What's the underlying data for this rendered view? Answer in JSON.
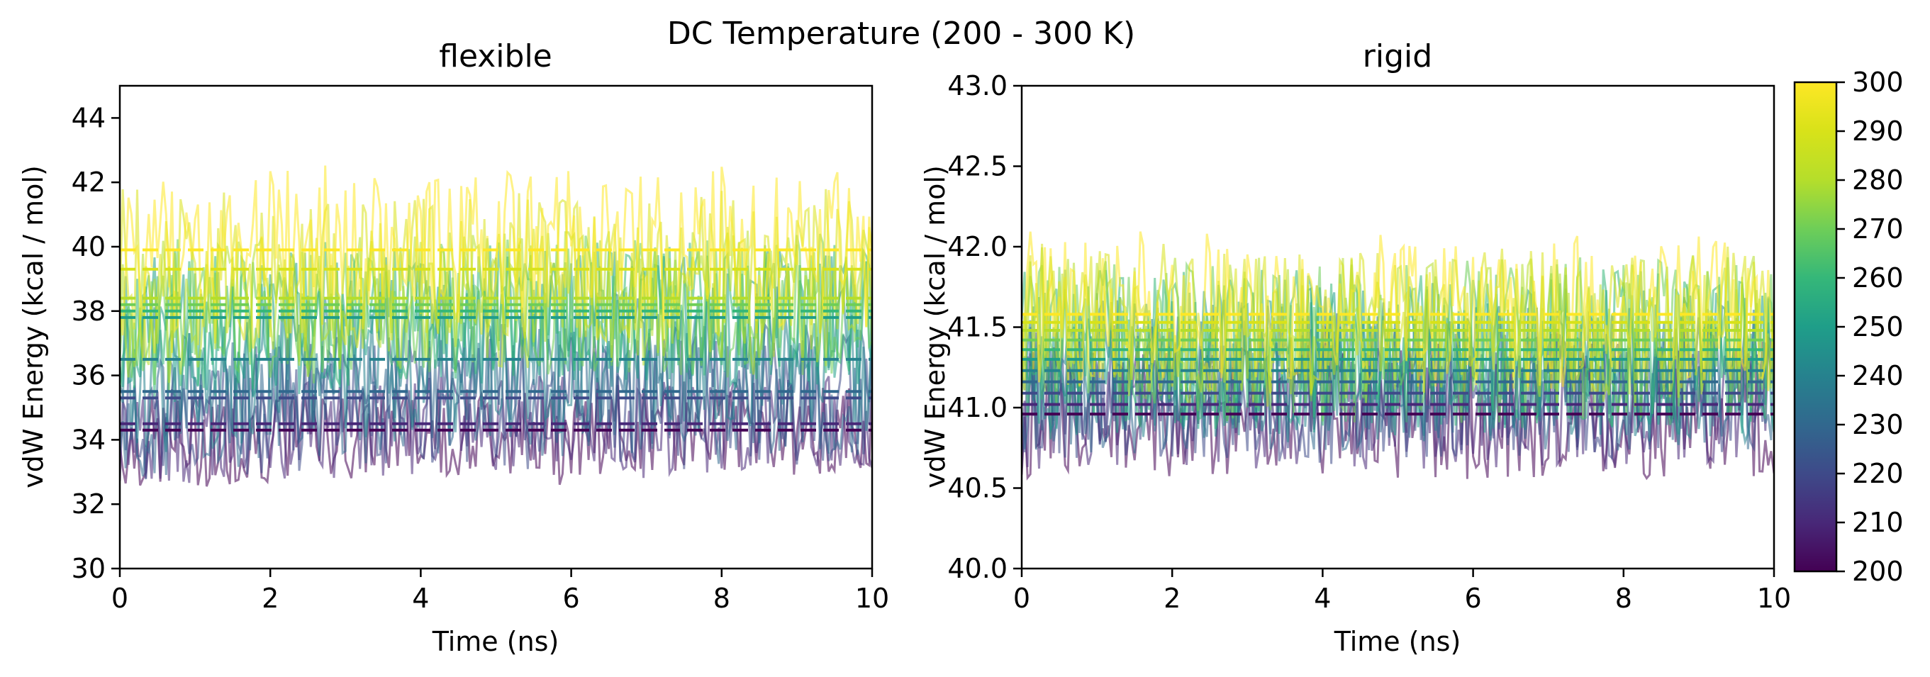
{
  "figure": {
    "suptitle": "DC Temperature (200 - 300 K)"
  },
  "colorbar": {
    "range": [
      200,
      300
    ],
    "ticks": [
      200,
      210,
      220,
      230,
      240,
      250,
      260,
      270,
      280,
      290,
      300
    ],
    "colormap": "viridis"
  },
  "chart_data": [
    {
      "type": "line",
      "title": "flexible",
      "xlabel": "Time (ns)",
      "ylabel": "vdW Energy (kcal / mol)",
      "xlim": [
        0,
        10
      ],
      "ylim": [
        30,
        45
      ],
      "xticks": [
        0,
        2,
        4,
        6,
        8,
        10
      ],
      "yticks": [
        30,
        32,
        34,
        36,
        38,
        40,
        42,
        44
      ],
      "grid": false,
      "series_description": "One noisy energy trace per replica, colored by DC temperature (viridis, 200-300 K). Dashed lines mark each replica's mean energy.",
      "series": [
        {
          "temperature": 200,
          "mean": 34.3,
          "spread": [
            32.6,
            35.6
          ]
        },
        {
          "temperature": 210,
          "mean": 34.5,
          "spread": [
            32.8,
            36.0
          ]
        },
        {
          "temperature": 220,
          "mean": 35.3,
          "spread": [
            33.0,
            37.2
          ]
        },
        {
          "temperature": 230,
          "mean": 35.5,
          "spread": [
            33.2,
            37.6
          ]
        },
        {
          "temperature": 240,
          "mean": 36.5,
          "spread": [
            33.8,
            38.6
          ]
        },
        {
          "temperature": 250,
          "mean": 37.8,
          "spread": [
            35.4,
            39.8
          ]
        },
        {
          "temperature": 260,
          "mean": 38.0,
          "spread": [
            35.6,
            40.2
          ]
        },
        {
          "temperature": 270,
          "mean": 38.2,
          "spread": [
            35.8,
            40.4
          ]
        },
        {
          "temperature": 280,
          "mean": 38.4,
          "spread": [
            36.0,
            40.6
          ]
        },
        {
          "temperature": 290,
          "mean": 39.3,
          "spread": [
            37.0,
            41.8
          ]
        },
        {
          "temperature": 300,
          "mean": 39.9,
          "spread": [
            37.5,
            42.6
          ]
        }
      ]
    },
    {
      "type": "line",
      "title": "rigid",
      "xlabel": "Time (ns)",
      "ylabel": "vdW Energy (kcal / mol)",
      "xlim": [
        0,
        10
      ],
      "ylim": [
        40,
        43
      ],
      "xticks": [
        0,
        2,
        4,
        6,
        8,
        10
      ],
      "yticks": [
        40.0,
        40.5,
        41.0,
        41.5,
        42.0,
        42.5,
        43.0
      ],
      "grid": false,
      "series_description": "One noisy energy trace per replica, colored by DC temperature (viridis, 200-300 K). Dashed lines mark each replica's mean energy.",
      "series": [
        {
          "temperature": 200,
          "mean": 40.96,
          "spread": [
            40.55,
            41.4
          ]
        },
        {
          "temperature": 210,
          "mean": 41.02,
          "spread": [
            40.6,
            41.45
          ]
        },
        {
          "temperature": 220,
          "mean": 41.09,
          "spread": [
            40.65,
            41.5
          ]
        },
        {
          "temperature": 230,
          "mean": 41.16,
          "spread": [
            40.7,
            41.6
          ]
        },
        {
          "temperature": 240,
          "mean": 41.23,
          "spread": [
            40.75,
            41.7
          ]
        },
        {
          "temperature": 250,
          "mean": 41.3,
          "spread": [
            40.8,
            41.8
          ]
        },
        {
          "temperature": 260,
          "mean": 41.36,
          "spread": [
            40.85,
            41.9
          ]
        },
        {
          "temperature": 270,
          "mean": 41.42,
          "spread": [
            40.9,
            41.95
          ]
        },
        {
          "temperature": 280,
          "mean": 41.48,
          "spread": [
            41.0,
            42.0
          ]
        },
        {
          "temperature": 290,
          "mean": 41.53,
          "spread": [
            41.1,
            42.05
          ]
        },
        {
          "temperature": 300,
          "mean": 41.58,
          "spread": [
            41.15,
            42.1
          ]
        }
      ]
    }
  ]
}
